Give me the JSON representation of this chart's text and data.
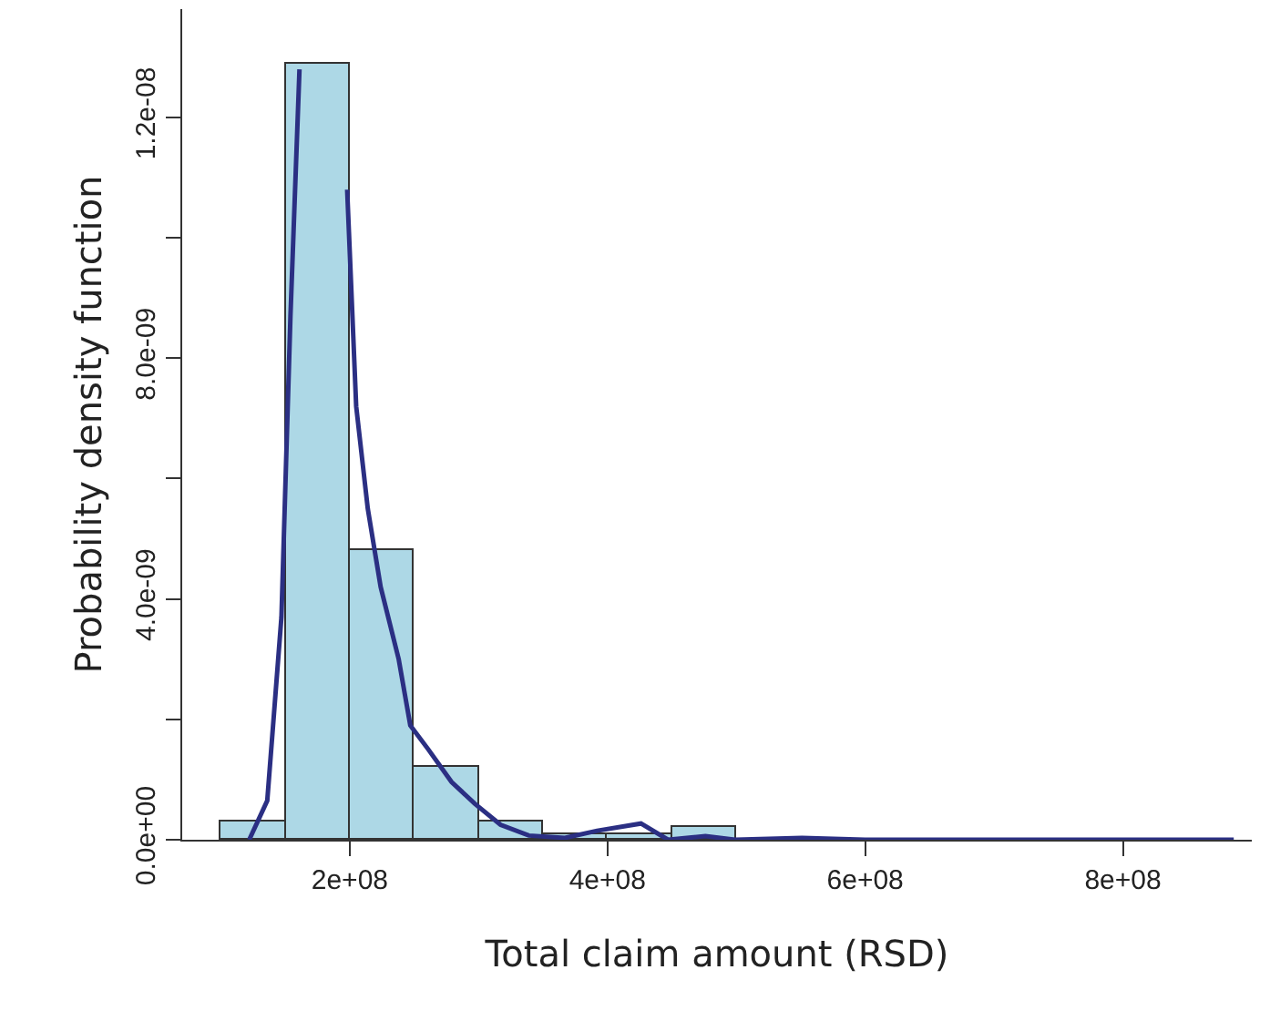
{
  "chart_data": {
    "type": "histogram",
    "xlabel": "Total claim amount (RSD)",
    "ylabel": "Probability density function",
    "bins": [
      100000000,
      150000000,
      200000000,
      250000000,
      300000000,
      350000000,
      400000000,
      450000000,
      500000000,
      550000000,
      600000000,
      650000000,
      700000000,
      750000000,
      800000000,
      850000000,
      900000000
    ],
    "values": [
      3e-10,
      1.29e-08,
      4.8e-09,
      1.2e-09,
      3e-10,
      1e-10,
      1e-10,
      2e-10,
      0,
      0,
      0,
      0,
      0,
      0,
      0,
      0
    ],
    "color": "#add8e6",
    "series": [
      {
        "type": "line",
        "color": "#2b2f83",
        "x": [
          122000000,
          136000000,
          147000000,
          154000000,
          161000000,
          164000000,
          178000000,
          192000000,
          198000000,
          205000000,
          214000000,
          224000000,
          238000000,
          247000000,
          261000000,
          279000000,
          297000000,
          317000000,
          339000000,
          367000000,
          392000000,
          426000000,
          447000000,
          476000000,
          499000000,
          551000000,
          600000000,
          700000000,
          800000000,
          886000000
        ],
        "values": [
          0,
          6.5e-10,
          3.7e-09,
          8.7e-09,
          1.28e-08,
          null,
          null,
          null,
          1.08e-08,
          7.2e-09,
          5.5e-09,
          4.2e-09,
          3e-09,
          1.9e-09,
          1.5e-09,
          9.6e-10,
          6e-10,
          2.5e-10,
          7e-11,
          3e-11,
          1.5e-10,
          2.7e-10,
          0,
          6e-11,
          0,
          3e-11,
          0,
          0,
          0,
          0
        ]
      }
    ],
    "xlim": [
      70000000,
      900000000
    ],
    "ylim": [
      0,
      1.38e-08
    ],
    "xticks": [
      {
        "value": 200000000,
        "label": "2e+08"
      },
      {
        "value": 400000000,
        "label": "4e+08"
      },
      {
        "value": 600000000,
        "label": "6e+08"
      },
      {
        "value": 800000000,
        "label": "8e+08"
      }
    ],
    "yticks": [
      {
        "value": 0,
        "label": "0.0e+00"
      },
      {
        "value": 2e-09,
        "label": null
      },
      {
        "value": 4e-09,
        "label": "4.0e-09"
      },
      {
        "value": 6e-09,
        "label": null
      },
      {
        "value": 8e-09,
        "label": "8.0e-09"
      },
      {
        "value": 1e-08,
        "label": null
      },
      {
        "value": 1.2e-08,
        "label": "1.2e-08"
      }
    ],
    "tick_labels": "xy"
  }
}
